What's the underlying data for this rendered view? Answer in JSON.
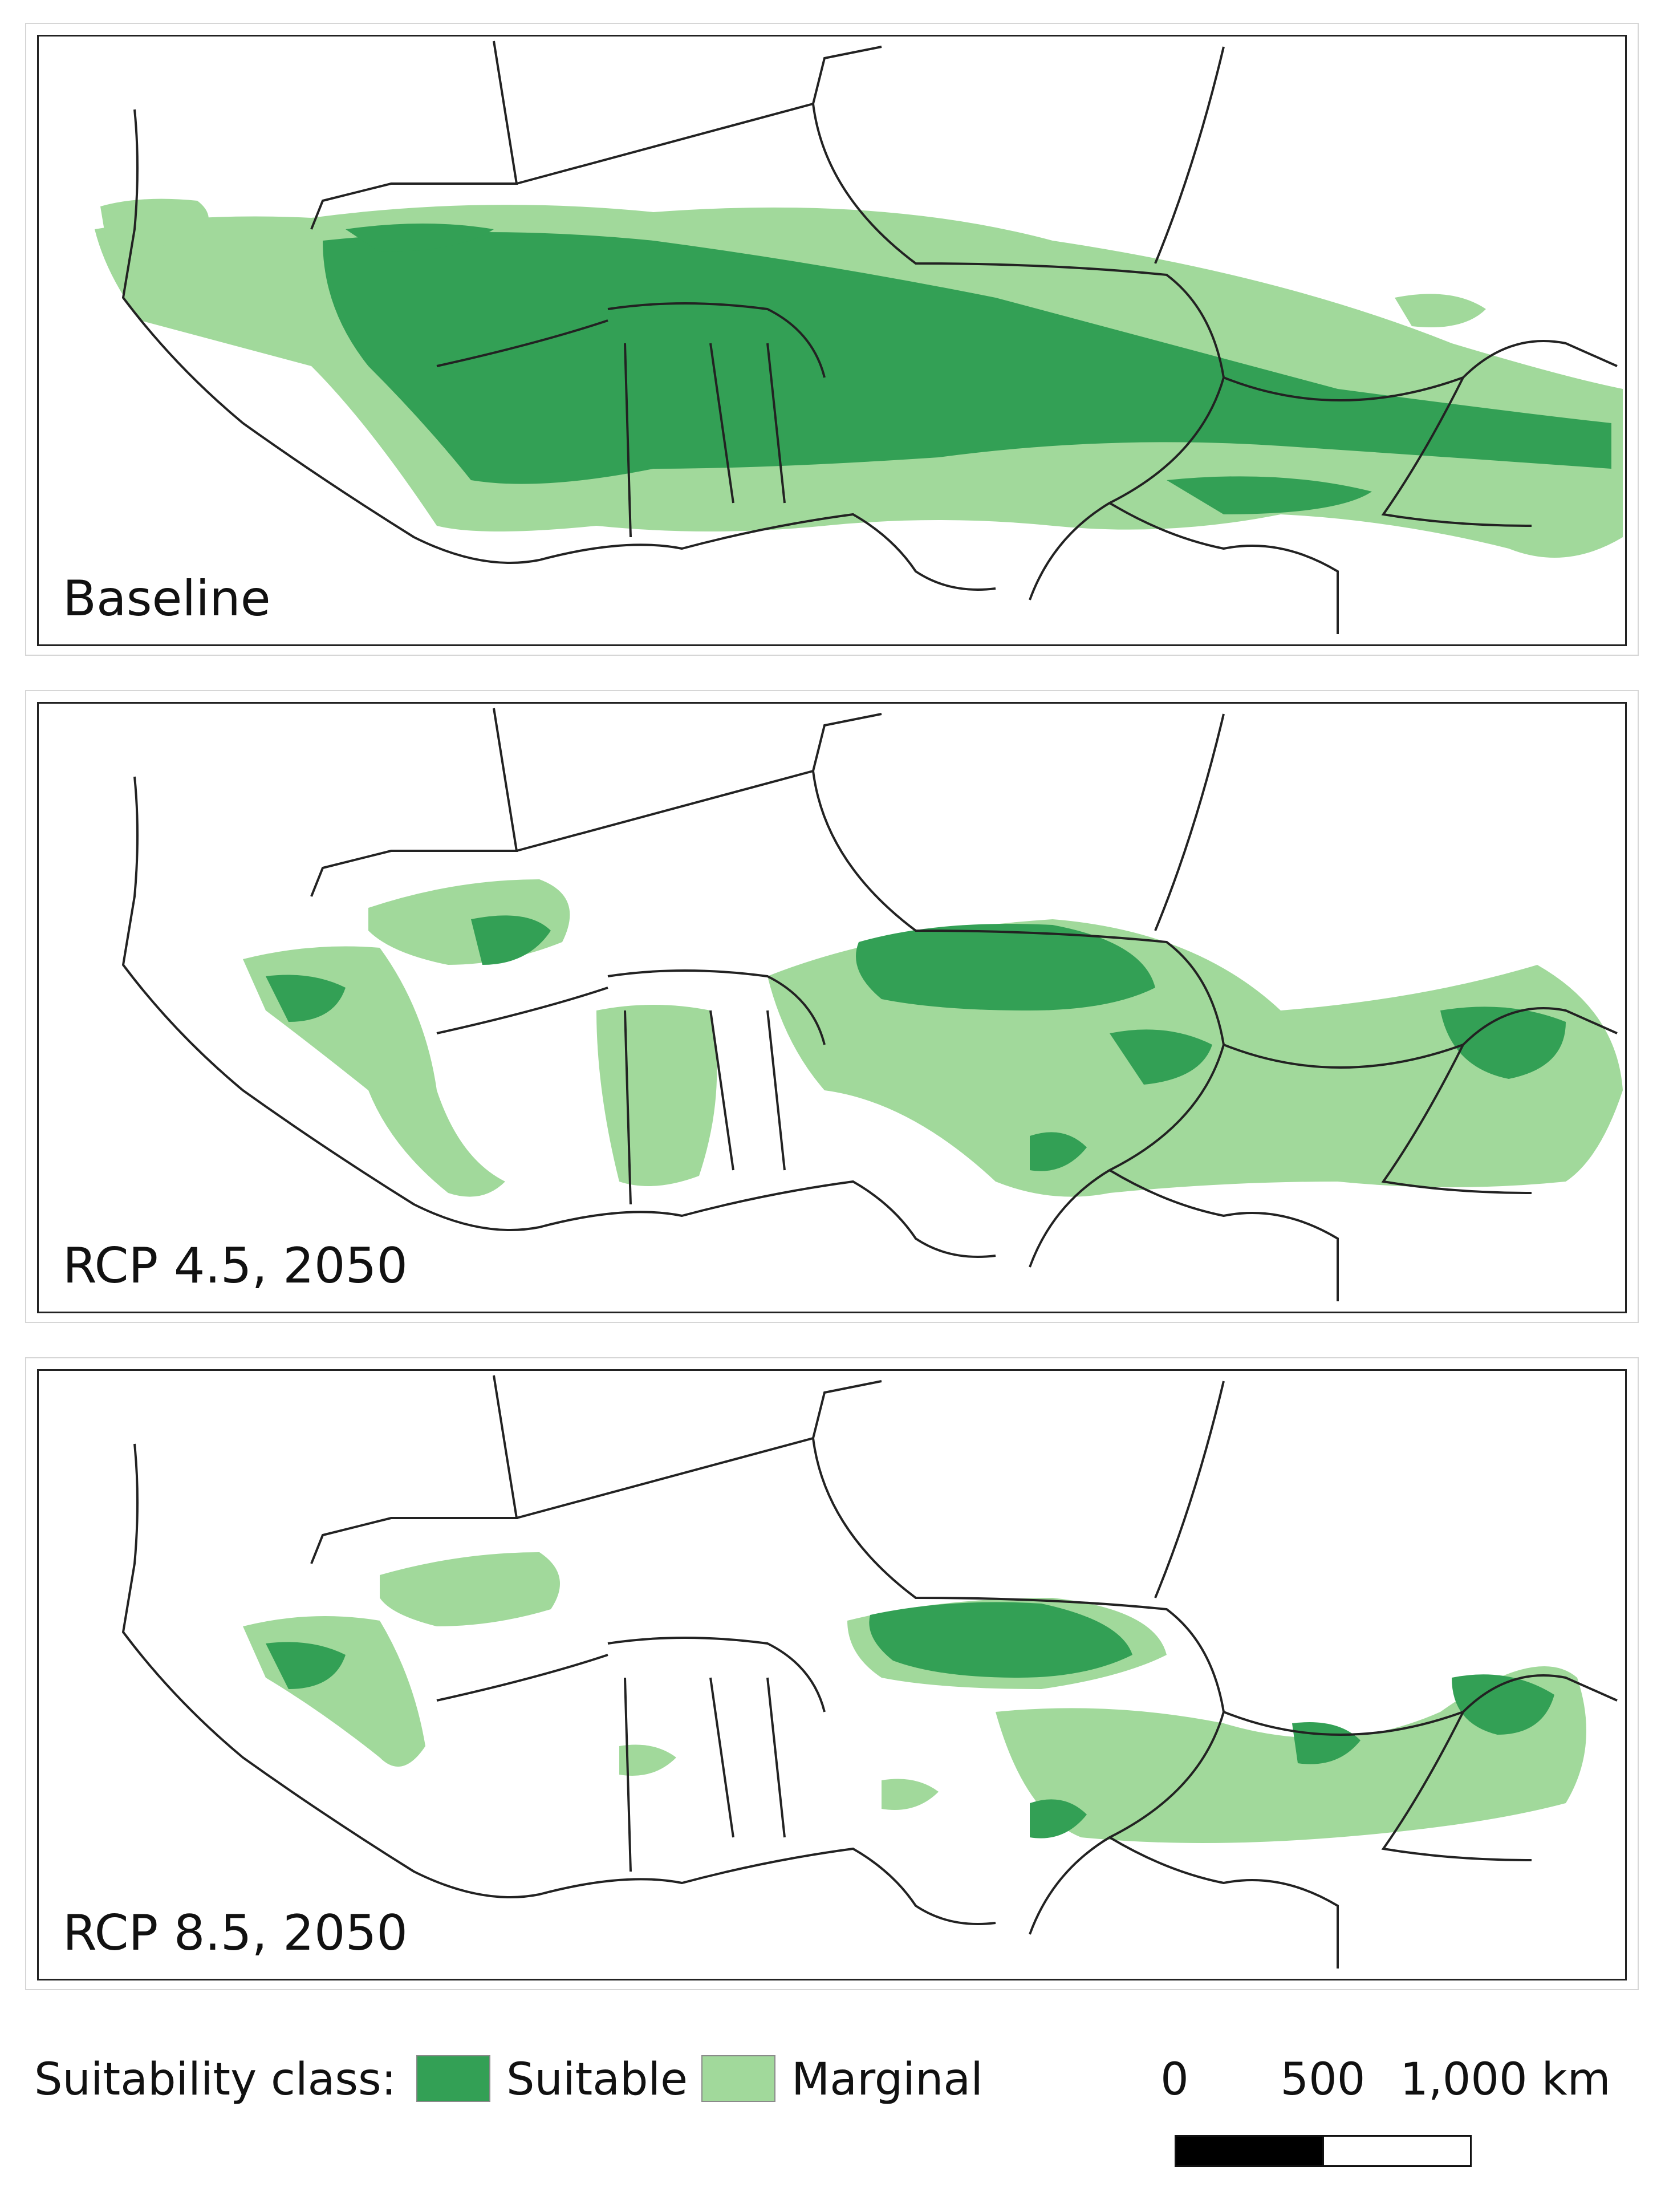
{
  "colors": {
    "suitable": "#33a055",
    "marginal": "#a1d99b",
    "border": "#222222",
    "background": "#ffffff"
  },
  "panels": [
    {
      "label": "Baseline"
    },
    {
      "label": "RCP 4.5, 2050"
    },
    {
      "label": "RCP 8.5, 2050"
    }
  ],
  "legend": {
    "title": "Suitability class:",
    "suitable_label": "Suitable",
    "marginal_label": "Marginal"
  },
  "scale": {
    "tick_0": "0",
    "tick_1": "500",
    "tick_2": "1,000 km"
  }
}
